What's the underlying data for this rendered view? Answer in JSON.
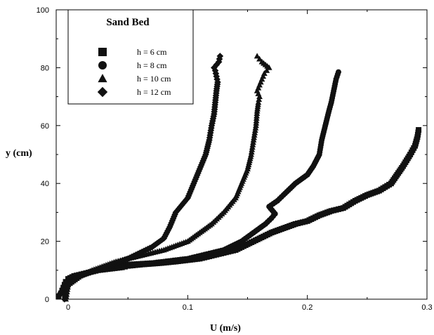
{
  "chart_data": {
    "type": "scatter",
    "xlabel": "U (m/s)",
    "ylabel": "y (cm)",
    "xlim": [
      -0.01,
      0.3
    ],
    "ylim": [
      0,
      100
    ],
    "x_ticks": [
      0,
      0.1,
      0.2,
      0.3
    ],
    "x_tick_labels": [
      "0",
      "0.1",
      "0.2",
      "0.3"
    ],
    "y_ticks": [
      0,
      20,
      40,
      60,
      80,
      100
    ],
    "y_tick_labels": [
      "0",
      "20",
      "40",
      "60",
      "80",
      "100"
    ],
    "grid": false,
    "legend": {
      "title": "Sand Bed",
      "placement": "top-left"
    },
    "series": [
      {
        "name": "h = 6 cm",
        "marker": "square",
        "x": [
          -0.008,
          -0.006,
          -0.005,
          -0.004,
          -0.003,
          -0.002,
          0.0,
          0.005,
          0.015,
          0.025,
          0.035,
          0.045,
          0.05,
          0.062,
          0.078,
          0.09,
          0.1,
          0.11,
          0.12,
          0.13,
          0.14,
          0.15,
          0.16,
          0.17,
          0.18,
          0.19,
          0.2,
          0.21,
          0.22,
          0.23,
          0.24,
          0.25,
          0.26,
          0.27,
          0.275,
          0.28,
          0.283,
          0.286,
          0.29,
          0.292,
          0.293
        ],
        "y": [
          1,
          2,
          3,
          4,
          5,
          6,
          7,
          8,
          9,
          10,
          10.5,
          11,
          11.5,
          12,
          12.5,
          13,
          13.5,
          14,
          15,
          16,
          17,
          19,
          21,
          23,
          24.5,
          26,
          27,
          29,
          30.5,
          31.5,
          34,
          36,
          37.5,
          40,
          43,
          46,
          48,
          50,
          53,
          56,
          58.5
        ]
      },
      {
        "name": "h = 8 cm",
        "marker": "circle",
        "x": [
          -0.008,
          -0.005,
          0.0,
          0.01,
          0.03,
          0.05,
          0.07,
          0.08,
          0.09,
          0.1,
          0.11,
          0.12,
          0.13,
          0.135,
          0.14,
          0.145,
          0.15,
          0.155,
          0.16,
          0.165,
          0.17,
          0.173,
          0.168,
          0.175,
          0.18,
          0.19,
          0.2,
          0.205,
          0.21,
          0.212,
          0.215,
          0.218,
          0.22,
          0.222,
          0.224,
          0.226
        ],
        "y": [
          1,
          3,
          5,
          8,
          11,
          12,
          12.5,
          13,
          13.5,
          14,
          15,
          16,
          17,
          18,
          19,
          20,
          21.5,
          23,
          24.5,
          26,
          28,
          29.5,
          32,
          34,
          36,
          40,
          43,
          46,
          50,
          55,
          60,
          65,
          68,
          72,
          76,
          78.5
        ]
      },
      {
        "name": "h = 10 cm",
        "marker": "triangle",
        "x": [
          -0.002,
          0.0,
          0.01,
          0.02,
          0.04,
          0.06,
          0.08,
          0.1,
          0.11,
          0.12,
          0.13,
          0.14,
          0.145,
          0.15,
          0.153,
          0.155,
          0.157,
          0.158,
          0.159,
          0.16,
          0.158,
          0.16,
          0.162,
          0.164,
          0.166,
          0.168,
          0.165,
          0.162,
          0.16,
          0.158
        ],
        "y": [
          0,
          5,
          8,
          10,
          13,
          15,
          17,
          20,
          23,
          26,
          30,
          35,
          40,
          45,
          50,
          55,
          60,
          65,
          68,
          70,
          72,
          74,
          76,
          78,
          79,
          80,
          81,
          82,
          83,
          84
        ]
      },
      {
        "name": "h = 12 cm",
        "marker": "diamond",
        "x": [
          -0.003,
          0.0,
          0.01,
          0.03,
          0.05,
          0.07,
          0.08,
          0.085,
          0.09,
          0.1,
          0.105,
          0.11,
          0.115,
          0.118,
          0.12,
          0.122,
          0.123,
          0.124,
          0.125,
          0.124,
          0.123,
          0.122,
          0.124,
          0.126,
          0.127
        ],
        "y": [
          0,
          5,
          8,
          11,
          14,
          18,
          21,
          25,
          30,
          35,
          40,
          45,
          50,
          55,
          60,
          64,
          68,
          72,
          75,
          77,
          79,
          80,
          81,
          82,
          84
        ]
      }
    ]
  }
}
